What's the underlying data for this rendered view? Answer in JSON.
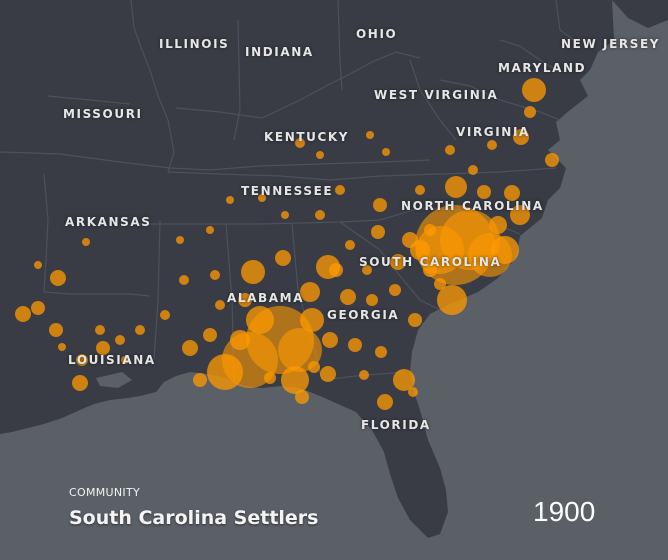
{
  "map": {
    "accent_color": "#ff9a00",
    "land_color": "#393c44",
    "sea_color": "#5b5f66",
    "border_color": "#4c5058",
    "state_labels": [
      {
        "id": "illinois",
        "text": "ILLINOIS"
      },
      {
        "id": "indiana",
        "text": "INDIANA"
      },
      {
        "id": "ohio",
        "text": "OHIO"
      },
      {
        "id": "new-jersey",
        "text": "NEW JERSEY"
      },
      {
        "id": "maryland",
        "text": "MARYLAND"
      },
      {
        "id": "missouri",
        "text": "MISSOURI"
      },
      {
        "id": "west-virginia",
        "text": "WEST VIRGINIA"
      },
      {
        "id": "kentucky",
        "text": "KENTUCKY"
      },
      {
        "id": "virginia",
        "text": "VIRGINIA"
      },
      {
        "id": "tennessee",
        "text": "TENNESSEE"
      },
      {
        "id": "north-carolina",
        "text": "NORTH CAROLINA"
      },
      {
        "id": "arkansas",
        "text": "ARKANSAS"
      },
      {
        "id": "south-carolina",
        "text": "SOUTH CAROLINA"
      },
      {
        "id": "alabama",
        "text": "ALABAMA"
      },
      {
        "id": "georgia",
        "text": "GEORGIA"
      },
      {
        "id": "louisiana",
        "text": "LOUISIANA"
      },
      {
        "id": "florida",
        "text": "FLORIDA"
      }
    ]
  },
  "legend": {
    "caption": "COMMUNITY",
    "title": "South Carolina Settlers"
  },
  "year": "1900"
}
